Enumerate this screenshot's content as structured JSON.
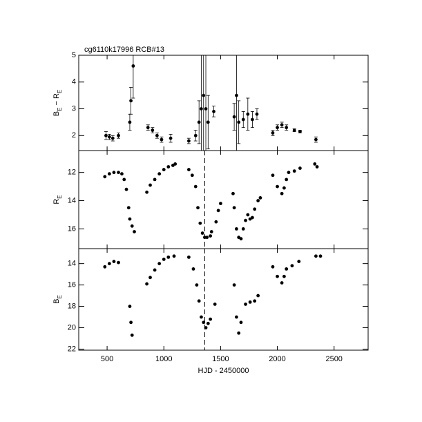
{
  "chart_data": [
    {
      "type": "scatter",
      "title": "cg6110k17996    RCB#13",
      "ylabel": [
        {
          "text": "B"
        },
        {
          "sub": "E"
        },
        {
          "text": " − R"
        },
        {
          "sub": "E"
        }
      ],
      "xlim": [
        250,
        2800
      ],
      "xticks": [
        500,
        1000,
        1500,
        2000,
        2500
      ],
      "ylim": [
        1.44,
        5
      ],
      "yticks": [
        2,
        3,
        4,
        5
      ],
      "invert_y": false,
      "x": [
        490,
        520,
        550,
        600,
        700,
        710,
        730,
        860,
        900,
        940,
        980,
        1060,
        1220,
        1280,
        1310,
        1330,
        1350,
        1370,
        1390,
        1440,
        1620,
        1640,
        1660,
        1700,
        1740,
        1780,
        1820,
        1960,
        2000,
        2040,
        2080,
        2150,
        2200,
        2340
      ],
      "values": [
        2.0,
        1.95,
        1.9,
        2.0,
        2.5,
        3.3,
        4.6,
        2.3,
        2.2,
        2.0,
        1.85,
        1.9,
        1.8,
        2.0,
        2.5,
        3.0,
        3.5,
        3.0,
        2.5,
        2.9,
        2.7,
        3.5,
        2.5,
        2.6,
        2.8,
        2.6,
        2.8,
        2.1,
        2.3,
        2.4,
        2.3,
        2.2,
        2.15,
        1.85
      ],
      "errors": [
        0.15,
        0.1,
        0.1,
        0.1,
        0.3,
        0.5,
        1.2,
        0.1,
        0.1,
        0.1,
        0.1,
        0.15,
        0.1,
        0.2,
        0.8,
        2.0,
        2.5,
        2.0,
        1.0,
        0.2,
        0.5,
        2.5,
        0.8,
        0.3,
        0.6,
        0.3,
        0.2,
        0.1,
        0.1,
        0.1,
        0.1,
        0.05,
        0.05,
        0.1
      ],
      "color": "#000000"
    },
    {
      "type": "scatter",
      "ylabel": [
        {
          "text": "R"
        },
        {
          "sub": "E"
        }
      ],
      "xlim": [
        250,
        2800
      ],
      "xticks": [
        500,
        1000,
        1500,
        2000,
        2500
      ],
      "ylim": [
        10.45,
        17.4
      ],
      "yticks": [
        12,
        14,
        16
      ],
      "invert_y": true,
      "vline": 1360,
      "x": [
        480,
        520,
        560,
        600,
        630,
        650,
        670,
        690,
        700,
        720,
        740,
        850,
        880,
        920,
        960,
        1000,
        1040,
        1080,
        1100,
        1220,
        1250,
        1280,
        1300,
        1320,
        1340,
        1360,
        1380,
        1410,
        1420,
        1460,
        1480,
        1500,
        1610,
        1620,
        1640,
        1660,
        1680,
        1700,
        1720,
        1740,
        1760,
        1780,
        1800,
        1830,
        1850,
        1960,
        2000,
        2040,
        2060,
        2080,
        2100,
        2150,
        2200,
        2330,
        2350
      ],
      "values": [
        12.3,
        12.1,
        12.0,
        12.0,
        12.1,
        12.5,
        13.2,
        14.5,
        15.3,
        15.8,
        16.2,
        13.4,
        12.9,
        12.5,
        12.1,
        11.8,
        11.6,
        11.5,
        11.4,
        11.8,
        12.2,
        13.0,
        14.5,
        15.6,
        16.3,
        16.6,
        16.6,
        16.5,
        16.2,
        15.5,
        14.7,
        14.2,
        13.5,
        14.5,
        16.0,
        16.6,
        16.7,
        16.0,
        15.4,
        15.0,
        15.3,
        15.2,
        14.6,
        14.0,
        13.8,
        12.2,
        13.0,
        13.5,
        13.1,
        12.5,
        12.0,
        11.9,
        11.7,
        11.4,
        11.6
      ],
      "color": "#000000"
    },
    {
      "type": "scatter",
      "xlabel": "HJD - 2450000",
      "ylabel": [
        {
          "text": "B"
        },
        {
          "sub": "E"
        }
      ],
      "xlim": [
        250,
        2800
      ],
      "xticks": [
        500,
        1000,
        1500,
        2000,
        2500
      ],
      "ylim": [
        12.6,
        22.1
      ],
      "yticks": [
        14,
        16,
        18,
        20,
        22
      ],
      "invert_y": true,
      "vline": 1360,
      "x": [
        480,
        520,
        560,
        600,
        700,
        710,
        720,
        850,
        880,
        920,
        960,
        1000,
        1040,
        1090,
        1220,
        1260,
        1290,
        1310,
        1330,
        1350,
        1370,
        1390,
        1410,
        1450,
        1620,
        1640,
        1660,
        1680,
        1720,
        1760,
        1800,
        1830,
        1960,
        2000,
        2040,
        2060,
        2080,
        2130,
        2190,
        2340,
        2380
      ],
      "values": [
        14.3,
        14.0,
        13.8,
        13.9,
        18.0,
        19.5,
        20.7,
        15.9,
        15.3,
        14.6,
        14.0,
        13.6,
        13.4,
        13.3,
        13.4,
        14.5,
        16.0,
        17.5,
        19.0,
        19.5,
        20.0,
        19.6,
        19.2,
        17.8,
        16.0,
        19.0,
        20.5,
        19.5,
        17.8,
        17.6,
        17.5,
        17.0,
        14.3,
        15.2,
        15.8,
        15.2,
        14.5,
        14.2,
        13.8,
        13.3,
        13.3
      ],
      "color": "#000000"
    }
  ]
}
